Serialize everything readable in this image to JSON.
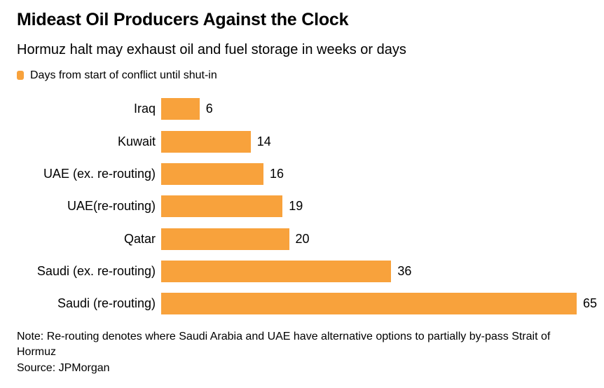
{
  "header": {
    "title": "Mideast Oil Producers Against the Clock",
    "subtitle": "Hormuz halt may exhaust oil and fuel storage in weeks or days"
  },
  "legend": {
    "label": "Days from start of conflict until shut-in",
    "marker_color": "#F8A23C"
  },
  "chart_data": {
    "type": "bar",
    "orientation": "horizontal",
    "categories": [
      "Iraq",
      "Kuwait",
      "UAE (ex. re-routing)",
      "UAE(re-routing)",
      "Qatar",
      "Saudi (ex. re-routing)",
      "Saudi (re-routing)"
    ],
    "values": [
      6,
      14,
      16,
      19,
      20,
      36,
      65
    ],
    "series_label": "Days from start of conflict until shut-in",
    "xlim": [
      0,
      65
    ],
    "bar_color": "#F8A23C",
    "value_labels_shown": true,
    "grid": false,
    "axis_lines": false,
    "legend_position": "top-left"
  },
  "footer": {
    "note": "Note: Re-routing denotes where Saudi Arabia and UAE have alternative options to partially by-pass Strait of Hormuz",
    "source": "Source: JPMorgan"
  }
}
